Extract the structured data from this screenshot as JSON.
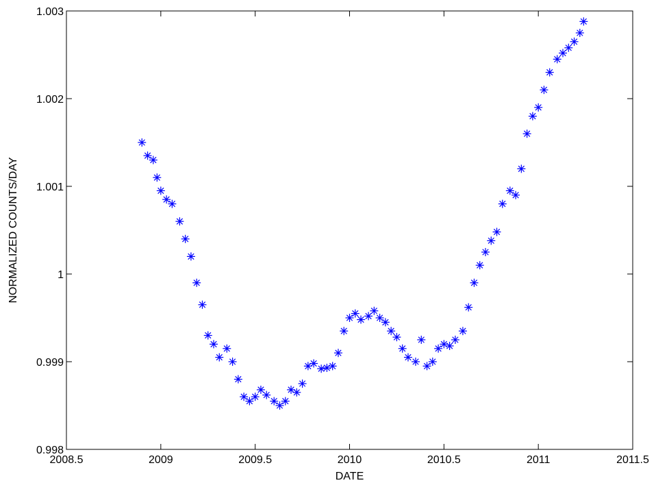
{
  "chart_data": {
    "type": "scatter",
    "title": "",
    "xlabel": "DATE",
    "ylabel": "NORMALIZED COUNTS/DAY",
    "xlim": [
      2008.5,
      2011.5
    ],
    "ylim": [
      0.998,
      1.003
    ],
    "x_ticks": [
      2008.5,
      2009,
      2009.5,
      2010,
      2010.5,
      2011,
      2011.5
    ],
    "x_tick_labels": [
      "2008.5",
      "2009",
      "2009.5",
      "2010",
      "2010.5",
      "2011",
      "2011.5"
    ],
    "y_ticks": [
      0.998,
      0.999,
      1.0,
      1.001,
      1.002,
      1.003
    ],
    "y_tick_labels": [
      "0.998",
      "0.999",
      "1",
      "1.001",
      "1.002",
      "1.003"
    ],
    "grid": false,
    "legend": "none",
    "marker": "asterisk",
    "marker_color": "#0000ff",
    "series": [
      {
        "x": [
          2008.9,
          2008.93,
          2008.96,
          2008.98,
          2009.0,
          2009.03,
          2009.06,
          2009.1,
          2009.13,
          2009.16,
          2009.19,
          2009.22,
          2009.25,
          2009.28,
          2009.31,
          2009.35,
          2009.38,
          2009.41,
          2009.44,
          2009.47,
          2009.5,
          2009.53,
          2009.56,
          2009.6,
          2009.63,
          2009.66,
          2009.69,
          2009.72,
          2009.75,
          2009.78,
          2009.81,
          2009.85,
          2009.88,
          2009.91,
          2009.94,
          2009.97,
          2010.0,
          2010.03,
          2010.06,
          2010.1,
          2010.13,
          2010.16,
          2010.19,
          2010.22,
          2010.25,
          2010.28,
          2010.31,
          2010.35,
          2010.38,
          2010.41,
          2010.44,
          2010.47,
          2010.5,
          2010.53,
          2010.56,
          2010.6,
          2010.63,
          2010.66,
          2010.69,
          2010.72,
          2010.75,
          2010.78,
          2010.81,
          2010.85,
          2010.88,
          2010.91,
          2010.94,
          2010.97,
          2011.0,
          2011.03,
          2011.06,
          2011.1,
          2011.13,
          2011.16,
          2011.19,
          2011.22,
          2011.24
        ],
        "y": [
          1.0015,
          1.00135,
          1.0013,
          1.0011,
          1.00095,
          1.00085,
          1.0008,
          1.0006,
          1.0004,
          1.0002,
          0.9999,
          0.99965,
          0.9993,
          0.9992,
          0.99905,
          0.99915,
          0.999,
          0.9988,
          0.9986,
          0.99855,
          0.9986,
          0.99868,
          0.99862,
          0.99855,
          0.9985,
          0.99855,
          0.99868,
          0.99865,
          0.99875,
          0.99895,
          0.99898,
          0.99892,
          0.99893,
          0.99895,
          0.9991,
          0.99935,
          0.9995,
          0.99955,
          0.99948,
          0.99952,
          0.99958,
          0.9995,
          0.99945,
          0.99935,
          0.99928,
          0.99915,
          0.99905,
          0.999,
          0.99925,
          0.99895,
          0.999,
          0.99915,
          0.9992,
          0.99918,
          0.99925,
          0.99935,
          0.99962,
          0.9999,
          1.0001,
          1.00025,
          1.00038,
          1.00048,
          1.0008,
          1.00095,
          1.0009,
          1.0012,
          1.0016,
          1.0018,
          1.0019,
          1.0021,
          1.0023,
          1.00245,
          1.00252,
          1.00258,
          1.00265,
          1.00275,
          1.00288
        ]
      }
    ]
  }
}
